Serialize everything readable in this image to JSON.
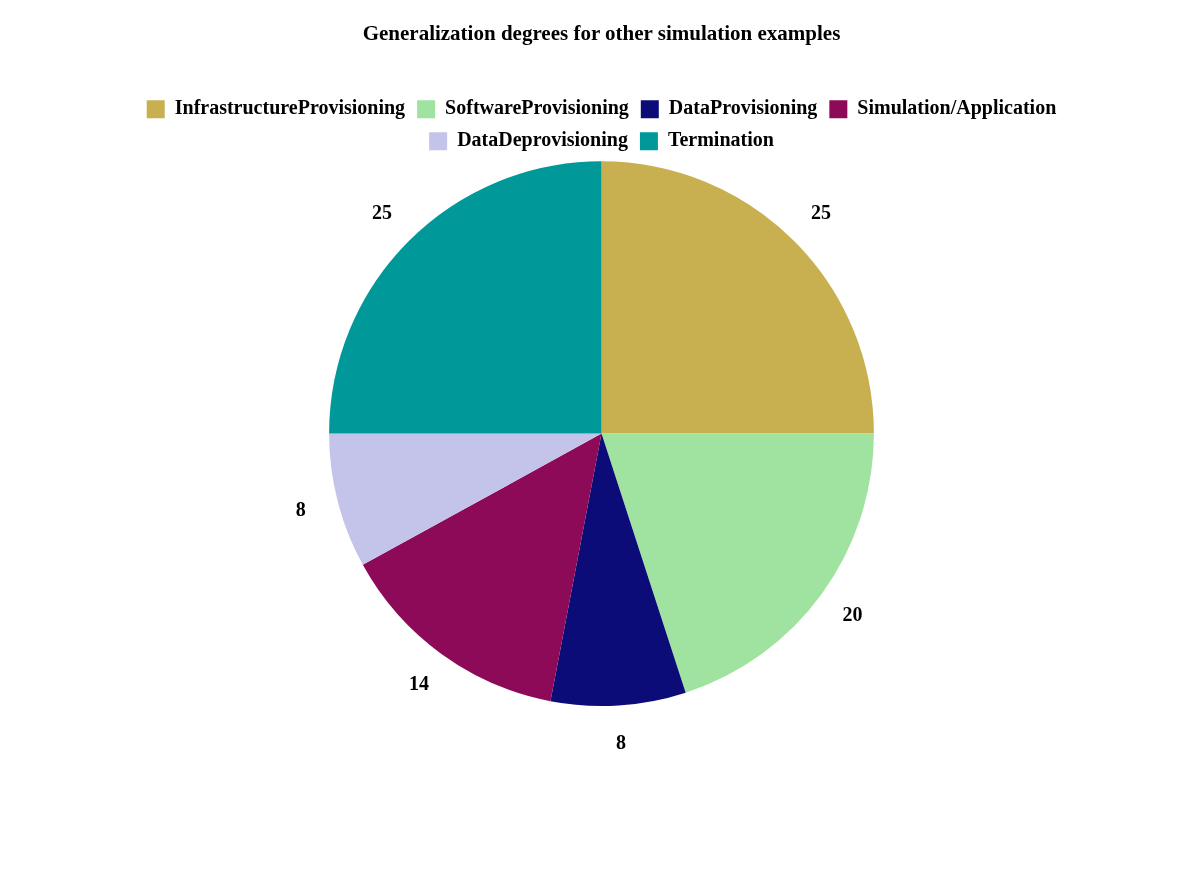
{
  "chart_data": {
    "type": "pie",
    "title": "Generalization degrees for other simulation examples",
    "categories": [
      "InfrastructureProvisioning",
      "SoftwareProvisioning",
      "DataProvisioning",
      "Simulation/Application",
      "DataDeprovisioning",
      "Termination"
    ],
    "values": [
      25,
      20,
      8,
      14,
      8,
      25
    ],
    "colors": [
      "#c8b050",
      "#a0e3a0",
      "#0c0c78",
      "#8c0a58",
      "#c4c4ea",
      "#009898"
    ],
    "legend": "top",
    "data_labels": true
  }
}
